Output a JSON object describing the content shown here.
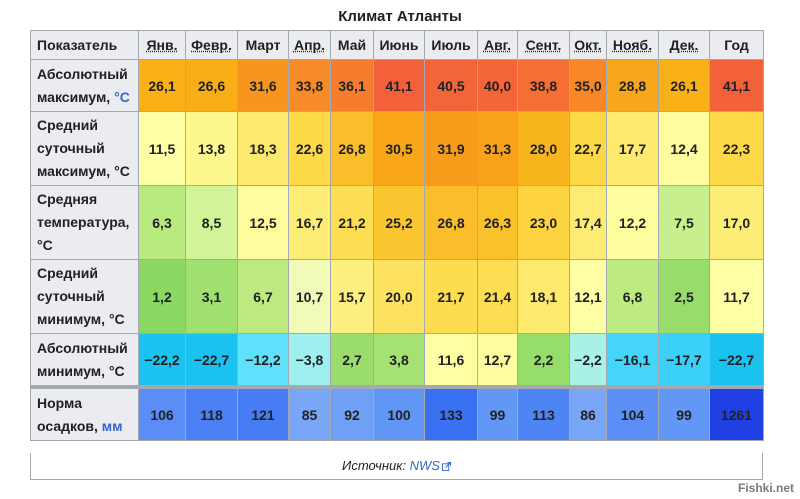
{
  "title": "Климат Атланты",
  "header": {
    "indicator": "Показатель",
    "months": [
      "Янв.",
      "Февр.",
      "Март",
      "Апр.",
      "Май",
      "Июнь",
      "Июль",
      "Авг.",
      "Сент.",
      "Окт.",
      "Нояб.",
      "Дек."
    ],
    "year": "Год"
  },
  "rows": [
    {
      "label_lines": [
        "Абсолютный",
        "максимум,"
      ],
      "unit": "°C",
      "unit_linked": true,
      "values": [
        "26,1",
        "26,6",
        "31,6",
        "33,8",
        "36,1",
        "41,1",
        "40,5",
        "40,0",
        "38,8",
        "35,0",
        "28,8",
        "26,1"
      ],
      "year": "41,1",
      "colors": [
        "#f9b117",
        "#f9ae17",
        "#f8951f",
        "#f78b27",
        "#f77d2e",
        "#f3613b",
        "#f46439",
        "#f46637",
        "#f56e33",
        "#f78727",
        "#f8a61a",
        "#f9b117"
      ],
      "year_color": "#f3613b"
    },
    {
      "label_lines": [
        "Средний",
        "суточный",
        "максимум,"
      ],
      "unit": "°C",
      "unit_linked": false,
      "values": [
        "11,5",
        "13,8",
        "18,3",
        "22,6",
        "26,8",
        "30,5",
        "31,9",
        "31,3",
        "28,0",
        "22,7",
        "17,7",
        "12,4"
      ],
      "year": "22,3",
      "colors": [
        "#fefea5",
        "#fdf78e",
        "#fde96d",
        "#fdd947",
        "#f9be2a",
        "#f9a719",
        "#f89d1b",
        "#f9a219",
        "#f9b51d",
        "#fdd947",
        "#fdea6f",
        "#fefd9e"
      ],
      "year_color": "#fdd947"
    },
    {
      "label_lines": [
        "Средняя",
        "температура,",
        "°C"
      ],
      "unit": "",
      "unit_linked": false,
      "values": [
        "6,3",
        "8,5",
        "12,5",
        "16,7",
        "21,2",
        "25,2",
        "26,8",
        "26,3",
        "23,0",
        "17,4",
        "12,2",
        "7,5"
      ],
      "year": "17,0",
      "colors": [
        "#b9ea7f",
        "#d3f399",
        "#fefc9d",
        "#fded76",
        "#fddd54",
        "#fbc630",
        "#f9be2a",
        "#fac12b",
        "#fdd43f",
        "#fdeb74",
        "#fefe9f",
        "#c8ef8d"
      ],
      "year_color": "#fdec75"
    },
    {
      "label_lines": [
        "Средний",
        "суточный",
        "минимум,"
      ],
      "unit": "°C",
      "unit_linked": false,
      "values": [
        "1,2",
        "3,1",
        "6,7",
        "10,7",
        "15,7",
        "20,0",
        "21,7",
        "21,4",
        "18,1",
        "12,1",
        "6,8",
        "2,5"
      ],
      "year": "11,7",
      "colors": [
        "#8bd863",
        "#9fe070",
        "#bcea80",
        "#f0fbb7",
        "#fdf07e",
        "#fde262",
        "#fddc50",
        "#fddd52",
        "#fde96b",
        "#fefea5",
        "#bdeb81",
        "#98dd6b"
      ],
      "year_color": "#fefea4"
    },
    {
      "label_lines": [
        "Абсолютный",
        "минимум,"
      ],
      "unit": "°C",
      "unit_linked": false,
      "values": [
        "−22,2",
        "−22,7",
        "−12,2",
        "−3,8",
        "2,7",
        "3,8",
        "11,6",
        "12,7",
        "2,2",
        "−2,2",
        "−16,1",
        "−17,7"
      ],
      "year": "−22,7",
      "colors": [
        "#1cc3f0",
        "#1bc2ef",
        "#5fe1fc",
        "#9eefef",
        "#9bdd6d",
        "#a5e274",
        "#fefea3",
        "#fefc9d",
        "#97dd6a",
        "#a9f0e6",
        "#45d5fb",
        "#3ad0fa"
      ],
      "year_color": "#1bc2ef"
    },
    {
      "label_lines": [
        "Норма",
        "осадков,"
      ],
      "unit": "мм",
      "unit_linked": true,
      "values": [
        "106",
        "118",
        "121",
        "85",
        "92",
        "100",
        "133",
        "99",
        "113",
        "86",
        "104",
        "99"
      ],
      "year": "1261",
      "colors": [
        "#5a8df5",
        "#4b80f4",
        "#477df4",
        "#7aa6f7",
        "#709ff6",
        "#6296f5",
        "#3a71f2",
        "#6397f6",
        "#4f84f4",
        "#79a5f7",
        "#5c8ff5",
        "#6397f6"
      ],
      "year_color": "#2140e4",
      "light_text": [
        false,
        false,
        false,
        false,
        false,
        false,
        true,
        false,
        false,
        false,
        false,
        false
      ],
      "year_light": true
    }
  ],
  "source": {
    "prefix": "Источник:",
    "link": "NWS"
  },
  "watermark": "Fishki.net"
}
